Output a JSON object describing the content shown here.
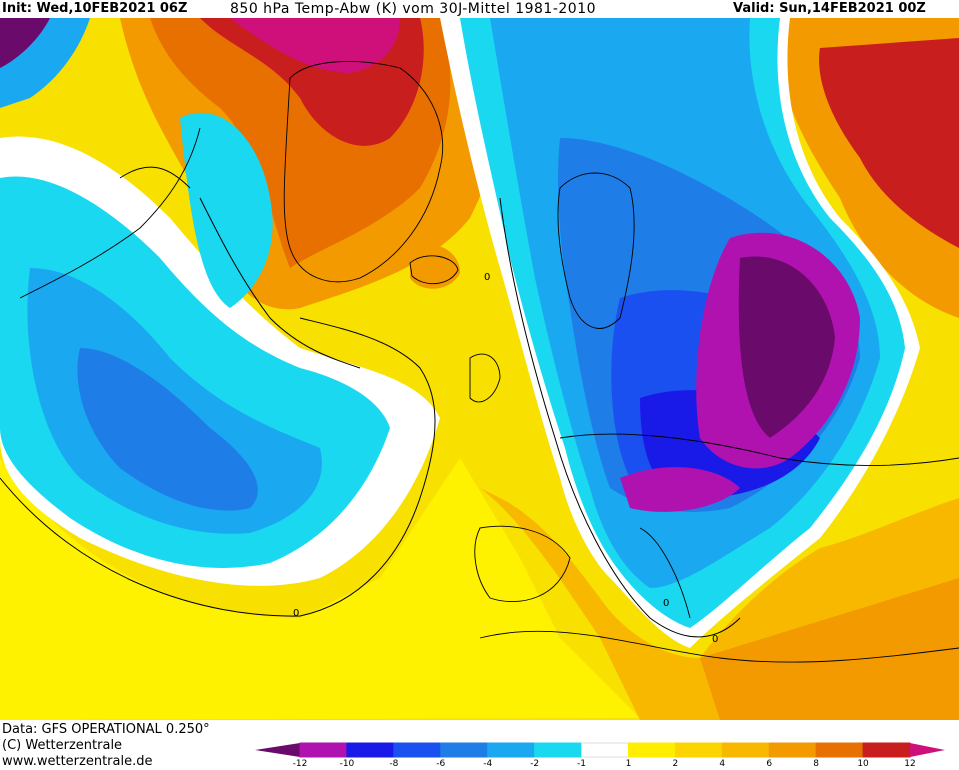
{
  "header": {
    "init": "Init: Wed,10FEB2021 06Z",
    "parameter": "850 hPa Temp-Abw (K) vom 30J-Mittel 1981-2010",
    "valid": "Valid: Sun,14FEB2021 00Z"
  },
  "footer": {
    "data_source": "Data: GFS OPERATIONAL 0.250°",
    "copyright": "(C) Wetterzentrale",
    "website": "www.wetterzentrale.de"
  },
  "map": {
    "contour_label": "0",
    "colors": {
      "cold_extreme": "#6a0a6a",
      "minus_12": "#b012b0",
      "minus_10": "#1a1ae8",
      "minus_8": "#1a50f0",
      "minus_6": "#1f7de8",
      "minus_4": "#1aa8f0",
      "minus_2": "#1ad8f0",
      "neutral": "#ffffff",
      "plus_1": "#ffee00",
      "plus_2": "#fcd400",
      "plus_4": "#f8b800",
      "plus_6": "#f29a00",
      "plus_8": "#e87000",
      "plus_10": "#c81e1e",
      "warm_extreme": "#d0107a"
    }
  },
  "legend": {
    "ticks": [
      "-12",
      "-10",
      "-8",
      "-6",
      "-4",
      "-2",
      "-1",
      "1",
      "2",
      "4",
      "6",
      "8",
      "10",
      "12"
    ],
    "colors": [
      "#b012b0",
      "#1a1ae8",
      "#1a50f0",
      "#1f7de8",
      "#1aa8f0",
      "#1ad8f0",
      "#ffffff",
      "#ffee00",
      "#fcd400",
      "#f8b800",
      "#f29a00",
      "#e87000",
      "#c81e1e"
    ],
    "low_end_color": "#6a0a6a",
    "high_end_color": "#d0107a"
  }
}
